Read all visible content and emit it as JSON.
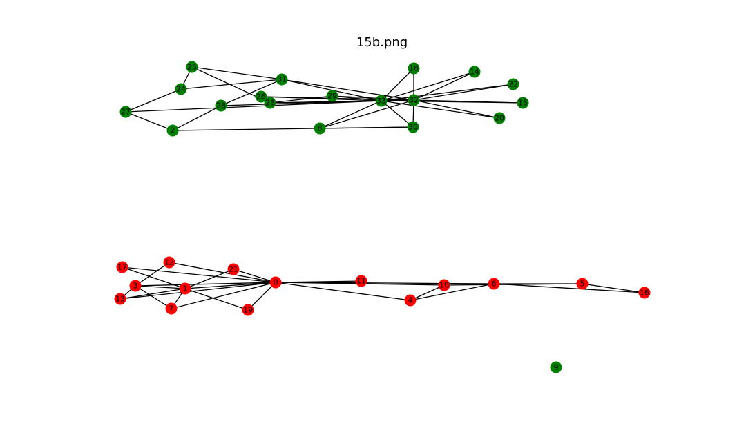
{
  "title": "15b.png",
  "colors": {
    "green": "#008000",
    "red": "#ff0000",
    "edge": "#000000"
  },
  "graph": {
    "nodes": [
      {
        "id": "0",
        "color": "red"
      },
      {
        "id": "1",
        "color": "red"
      },
      {
        "id": "2",
        "color": "green"
      },
      {
        "id": "3",
        "color": "red"
      },
      {
        "id": "4",
        "color": "red"
      },
      {
        "id": "5",
        "color": "red"
      },
      {
        "id": "6",
        "color": "red"
      },
      {
        "id": "7",
        "color": "red"
      },
      {
        "id": "8",
        "color": "green"
      },
      {
        "id": "9",
        "color": "green"
      },
      {
        "id": "10",
        "color": "red"
      },
      {
        "id": "11",
        "color": "red"
      },
      {
        "id": "12",
        "color": "red"
      },
      {
        "id": "13",
        "color": "red"
      },
      {
        "id": "14",
        "color": "green"
      },
      {
        "id": "15",
        "color": "green"
      },
      {
        "id": "16",
        "color": "red"
      },
      {
        "id": "17",
        "color": "red"
      },
      {
        "id": "18",
        "color": "green"
      },
      {
        "id": "19",
        "color": "red"
      },
      {
        "id": "20",
        "color": "green"
      },
      {
        "id": "21",
        "color": "red"
      },
      {
        "id": "22",
        "color": "green"
      },
      {
        "id": "23",
        "color": "green"
      },
      {
        "id": "24",
        "color": "green"
      },
      {
        "id": "25",
        "color": "green"
      },
      {
        "id": "26",
        "color": "green"
      },
      {
        "id": "27",
        "color": "green"
      },
      {
        "id": "28",
        "color": "green"
      },
      {
        "id": "29",
        "color": "green"
      },
      {
        "id": "30",
        "color": "green"
      },
      {
        "id": "31",
        "color": "green"
      },
      {
        "id": "32",
        "color": "green"
      },
      {
        "id": "33",
        "color": "green"
      }
    ],
    "edges": [
      [
        "0",
        "1"
      ],
      [
        "0",
        "3"
      ],
      [
        "0",
        "4"
      ],
      [
        "0",
        "6"
      ],
      [
        "0",
        "7"
      ],
      [
        "0",
        "10"
      ],
      [
        "0",
        "11"
      ],
      [
        "0",
        "12"
      ],
      [
        "0",
        "13"
      ],
      [
        "0",
        "17"
      ],
      [
        "0",
        "19"
      ],
      [
        "0",
        "21"
      ],
      [
        "1",
        "3"
      ],
      [
        "1",
        "7"
      ],
      [
        "1",
        "13"
      ],
      [
        "1",
        "17"
      ],
      [
        "1",
        "19"
      ],
      [
        "1",
        "21"
      ],
      [
        "3",
        "7"
      ],
      [
        "3",
        "12"
      ],
      [
        "3",
        "13"
      ],
      [
        "4",
        "6"
      ],
      [
        "4",
        "10"
      ],
      [
        "5",
        "6"
      ],
      [
        "5",
        "10"
      ],
      [
        "5",
        "16"
      ],
      [
        "6",
        "16"
      ],
      [
        "2",
        "27"
      ],
      [
        "2",
        "28"
      ],
      [
        "2",
        "30"
      ],
      [
        "8",
        "30"
      ],
      [
        "8",
        "32"
      ],
      [
        "8",
        "33"
      ],
      [
        "14",
        "32"
      ],
      [
        "14",
        "33"
      ],
      [
        "15",
        "32"
      ],
      [
        "15",
        "33"
      ],
      [
        "18",
        "32"
      ],
      [
        "18",
        "33"
      ],
      [
        "20",
        "32"
      ],
      [
        "20",
        "33"
      ],
      [
        "22",
        "32"
      ],
      [
        "22",
        "33"
      ],
      [
        "23",
        "29"
      ],
      [
        "23",
        "32"
      ],
      [
        "23",
        "33"
      ],
      [
        "24",
        "25"
      ],
      [
        "24",
        "31"
      ],
      [
        "25",
        "31"
      ],
      [
        "25",
        "23"
      ],
      [
        "26",
        "23"
      ],
      [
        "26",
        "32"
      ],
      [
        "26",
        "33"
      ],
      [
        "27",
        "24"
      ],
      [
        "27",
        "33"
      ],
      [
        "28",
        "31"
      ],
      [
        "28",
        "33"
      ],
      [
        "29",
        "32"
      ],
      [
        "29",
        "33"
      ],
      [
        "30",
        "32"
      ],
      [
        "30",
        "33"
      ],
      [
        "31",
        "32"
      ],
      [
        "31",
        "33"
      ],
      [
        "32",
        "33"
      ]
    ]
  }
}
